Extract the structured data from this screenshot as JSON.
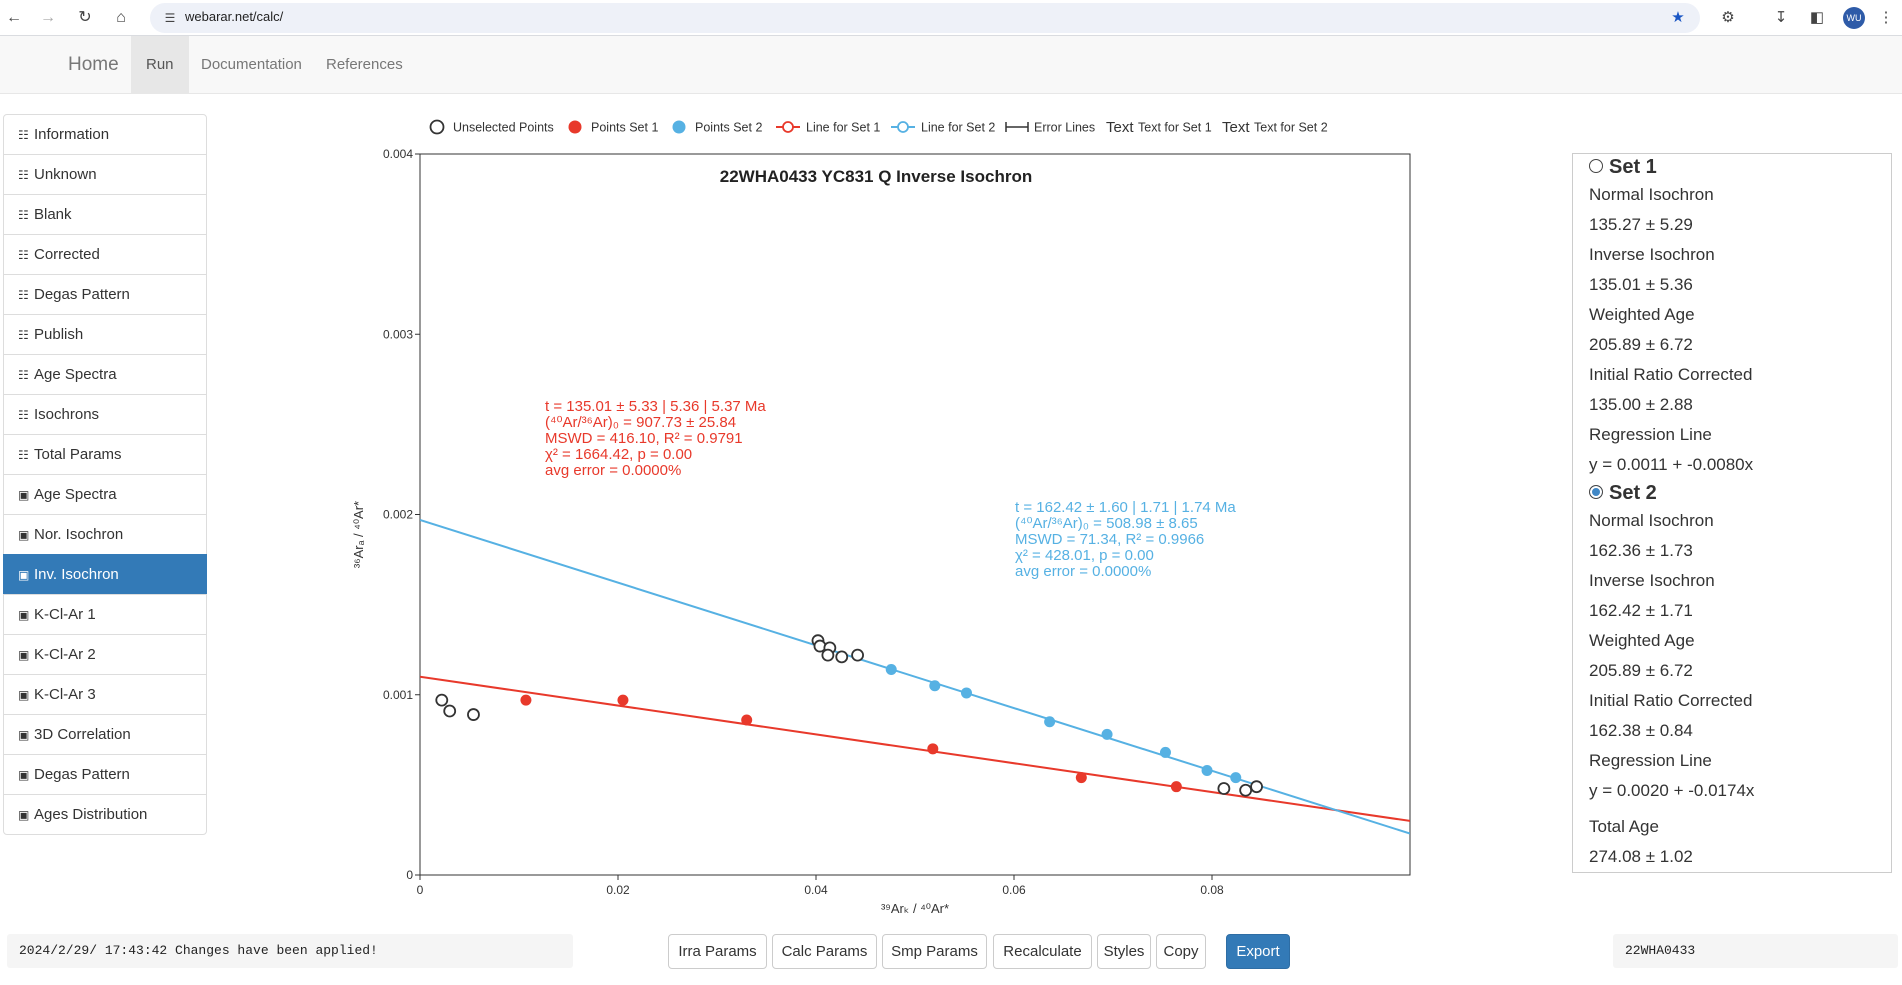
{
  "browser": {
    "url": "webarar.net/calc/",
    "profile_initials": "WU"
  },
  "navbar": {
    "brand": "Home",
    "items": [
      "Run",
      "Documentation",
      "References"
    ],
    "active": "Run"
  },
  "sidebar": {
    "items": [
      {
        "label": "Information",
        "icon": "table-icon"
      },
      {
        "label": "Unknown",
        "icon": "table-icon"
      },
      {
        "label": "Blank",
        "icon": "table-icon"
      },
      {
        "label": "Corrected",
        "icon": "table-icon"
      },
      {
        "label": "Degas Pattern",
        "icon": "table-icon"
      },
      {
        "label": "Publish",
        "icon": "table-icon"
      },
      {
        "label": "Age Spectra",
        "icon": "table-icon"
      },
      {
        "label": "Isochrons",
        "icon": "table-icon"
      },
      {
        "label": "Total Params",
        "icon": "table-icon"
      },
      {
        "label": "Age Spectra",
        "icon": "image-icon"
      },
      {
        "label": "Nor. Isochron",
        "icon": "image-icon"
      },
      {
        "label": "Inv. Isochron",
        "icon": "image-icon"
      },
      {
        "label": "K-Cl-Ar 1",
        "icon": "image-icon"
      },
      {
        "label": "K-Cl-Ar 2",
        "icon": "image-icon"
      },
      {
        "label": "K-Cl-Ar 3",
        "icon": "image-icon"
      },
      {
        "label": "3D Correlation",
        "icon": "image-icon"
      },
      {
        "label": "Degas Pattern",
        "icon": "image-icon"
      },
      {
        "label": "Ages Distribution",
        "icon": "image-icon"
      }
    ],
    "active_index": 11
  },
  "legend": {
    "unselected": "Unselected Points",
    "points_set1": "Points Set 1",
    "points_set2": "Points Set 2",
    "line_set1": "Line for Set 1",
    "line_set2": "Line for Set 2",
    "error_lines": "Error Lines",
    "text_word": "Text",
    "text_set1": "Text for Set 1",
    "text_set2": "Text for Set 2"
  },
  "colors": {
    "set1": "#e8392b",
    "set2": "#56b1e3",
    "unselected": "#333333",
    "primary": "#337ab7"
  },
  "chart_data": {
    "type": "scatter",
    "title": "22WHA0433 YC831 Q Inverse Isochron",
    "xlabel": "³⁹Arₖ / ⁴⁰Ar*",
    "ylabel": "³⁶Arₐ / ⁴⁰Ar*",
    "xlim": [
      0,
      0.1
    ],
    "ylim": [
      0,
      0.004
    ],
    "x_ticks": [
      "0",
      "0.02",
      "0.04",
      "0.06",
      "0.08"
    ],
    "y_ticks": [
      "0",
      "0.001",
      "0.002",
      "0.003",
      "0.004"
    ],
    "series": [
      {
        "name": "Unselected Points",
        "style": "unselected",
        "points": [
          [
            0.0022,
            0.00097
          ],
          [
            0.003,
            0.00091
          ],
          [
            0.0054,
            0.00089
          ],
          [
            0.0402,
            0.0013
          ],
          [
            0.0404,
            0.00127
          ],
          [
            0.0414,
            0.00126
          ],
          [
            0.0412,
            0.00122
          ],
          [
            0.0426,
            0.00121
          ],
          [
            0.0442,
            0.00122
          ],
          [
            0.0812,
            0.00048
          ],
          [
            0.0834,
            0.00047
          ],
          [
            0.0845,
            0.00049
          ]
        ]
      },
      {
        "name": "Points Set 1",
        "style": "set1",
        "points": [
          [
            0.0107,
            0.00097
          ],
          [
            0.0205,
            0.00097
          ],
          [
            0.033,
            0.00086
          ],
          [
            0.0518,
            0.0007
          ],
          [
            0.0668,
            0.00054
          ],
          [
            0.0764,
            0.00049
          ]
        ]
      },
      {
        "name": "Points Set 2",
        "style": "set2",
        "points": [
          [
            0.0476,
            0.00114
          ],
          [
            0.052,
            0.00105
          ],
          [
            0.0552,
            0.00101
          ],
          [
            0.0636,
            0.00085
          ],
          [
            0.0694,
            0.00078
          ],
          [
            0.0753,
            0.00068
          ],
          [
            0.0795,
            0.00058
          ],
          [
            0.0824,
            0.00054
          ]
        ]
      }
    ],
    "lines": [
      {
        "name": "Line for Set 1",
        "style": "set1",
        "intercept": 0.0011,
        "slope": -0.008
      },
      {
        "name": "Line for Set 2",
        "style": "set2",
        "intercept": 0.00197,
        "slope": -0.0174
      }
    ],
    "annotations": {
      "set1": {
        "lines": [
          "t = 135.01 ± 5.33 | 5.36 | 5.37 Ma",
          "(⁴⁰Ar/³⁶Ar)₀ = 907.73 ± 25.84",
          "MSWD = 416.10, R² = 0.9791",
          "χ² = 1664.42, p = 0.00",
          "avg error = 0.0000%"
        ]
      },
      "set2": {
        "lines": [
          "t = 162.42 ± 1.60 | 1.71 | 1.74 Ma",
          "(⁴⁰Ar/³⁶Ar)₀ = 508.98 ± 8.65",
          "MSWD = 71.34, R² = 0.9966",
          "χ² = 428.01, p = 0.00",
          "avg error = 0.0000%"
        ]
      }
    }
  },
  "results": {
    "set1": {
      "title": "Set 1",
      "normal_label": "Normal Isochron",
      "normal_value": "135.27 ± 5.29",
      "inverse_label": "Inverse Isochron",
      "inverse_value": "135.01 ± 5.36",
      "weighted_label": "Weighted Age",
      "weighted_value": "205.89 ± 6.72",
      "initial_label": "Initial Ratio Corrected",
      "initial_value": "135.00 ± 2.88",
      "regression_label": "Regression Line",
      "regression_value": "y = 0.0011 + -0.0080x"
    },
    "set2": {
      "title": "Set 2",
      "normal_label": "Normal Isochron",
      "normal_value": "162.36 ± 1.73",
      "inverse_label": "Inverse Isochron",
      "inverse_value": "162.42 ± 1.71",
      "weighted_label": "Weighted Age",
      "weighted_value": "205.89 ± 6.72",
      "initial_label": "Initial Ratio Corrected",
      "initial_value": "162.38 ± 0.84",
      "regression_label": "Regression Line",
      "regression_value": "y = 0.0020 + -0.0174x"
    },
    "total_age_label": "Total Age",
    "total_age_value": "274.08 ± 1.02"
  },
  "status": {
    "message": "2024/2/29/ 17:43:42 Changes have been applied!",
    "sample_name": "22WHA0433"
  },
  "buttons": [
    "Irra Params",
    "Calc Params",
    "Smp Params",
    "Recalculate",
    "Styles",
    "Copy",
    "Export"
  ]
}
